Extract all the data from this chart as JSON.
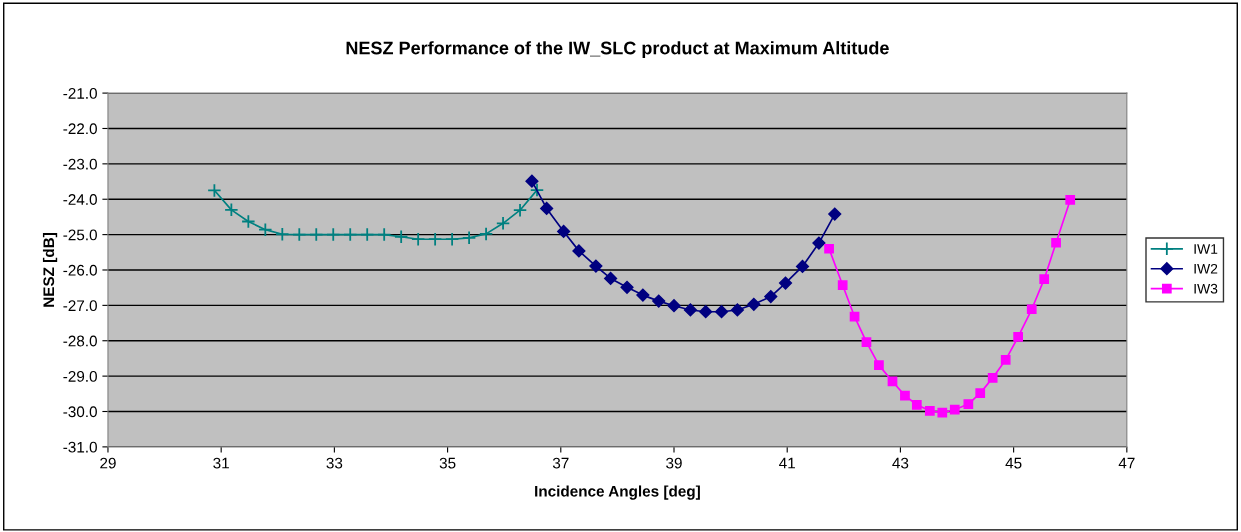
{
  "chart_data": {
    "type": "line",
    "title": "NESZ Performance of the IW_SLC product at Maximum Altitude",
    "xlabel": "Incidence Angles [deg]",
    "ylabel": "NESZ [dB]",
    "xlim": [
      29,
      47
    ],
    "xticks": [
      29,
      31,
      33,
      35,
      37,
      39,
      41,
      43,
      45,
      47
    ],
    "ylim": [
      -31,
      -21
    ],
    "yticks": [
      {
        "value": -31,
        "label": "-31.0"
      },
      {
        "value": -30,
        "label": "-30.0"
      },
      {
        "value": -29,
        "label": "-29.0"
      },
      {
        "value": -28,
        "label": "-28.0"
      },
      {
        "value": -27,
        "label": "-27.0"
      },
      {
        "value": -26,
        "label": "-26.0"
      },
      {
        "value": -25,
        "label": "-25.0"
      },
      {
        "value": -24,
        "label": "-24.0"
      },
      {
        "value": -23,
        "label": "-23.0"
      },
      {
        "value": -22,
        "label": "-22.0"
      },
      {
        "value": -21,
        "label": "-21.0"
      }
    ],
    "grid": "y",
    "legend": "right",
    "series": [
      {
        "name": "IW1",
        "color": "#008080",
        "marker": "cross",
        "x": [
          30.88,
          31.18,
          31.48,
          31.78,
          32.08,
          32.38,
          32.68,
          32.98,
          33.28,
          33.58,
          33.88,
          34.18,
          34.48,
          34.78,
          35.08,
          35.38,
          35.68,
          35.98,
          36.28,
          36.58
        ],
        "values": [
          -23.75,
          -24.3,
          -24.63,
          -24.86,
          -24.99,
          -25.0,
          -25.0,
          -25.0,
          -25.0,
          -25.0,
          -25.0,
          -25.06,
          -25.13,
          -25.13,
          -25.13,
          -25.09,
          -24.98,
          -24.68,
          -24.31,
          -23.74
        ]
      },
      {
        "name": "IW2",
        "color": "#000080",
        "marker": "diamond",
        "x": [
          36.49,
          36.75,
          37.05,
          37.32,
          37.62,
          37.88,
          38.17,
          38.45,
          38.73,
          39.0,
          39.29,
          39.56,
          39.84,
          40.12,
          40.41,
          40.71,
          40.97,
          41.27,
          41.56,
          41.84
        ],
        "values": [
          -23.49,
          -24.26,
          -24.91,
          -25.46,
          -25.89,
          -26.24,
          -26.49,
          -26.71,
          -26.88,
          -27.01,
          -27.13,
          -27.18,
          -27.18,
          -27.13,
          -26.97,
          -26.75,
          -26.37,
          -25.9,
          -25.24,
          -24.42
        ]
      },
      {
        "name": "IW3",
        "color": "#ff00ff",
        "marker": "square",
        "x": [
          41.74,
          41.98,
          42.19,
          42.4,
          42.62,
          42.86,
          43.08,
          43.29,
          43.52,
          43.74,
          43.96,
          44.2,
          44.41,
          44.63,
          44.86,
          45.08,
          45.32,
          45.54,
          45.75,
          46.0
        ],
        "values": [
          -25.4,
          -26.43,
          -27.32,
          -28.04,
          -28.69,
          -29.15,
          -29.55,
          -29.81,
          -29.98,
          -30.03,
          -29.95,
          -29.79,
          -29.48,
          -29.05,
          -28.54,
          -27.89,
          -27.11,
          -26.26,
          -25.23,
          -24.02
        ]
      }
    ]
  }
}
